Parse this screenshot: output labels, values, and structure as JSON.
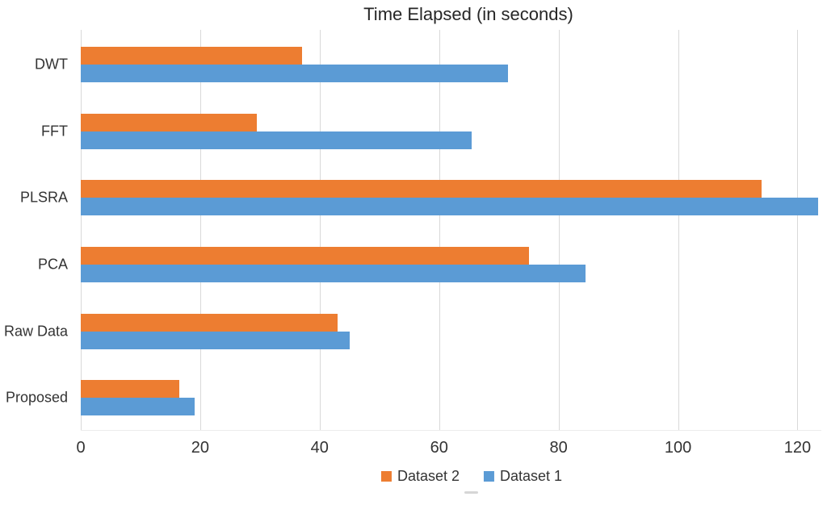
{
  "chart_data": {
    "type": "bar",
    "orientation": "horizontal",
    "title": "Time Elapsed (in seconds)",
    "value_unit": "seconds",
    "categories": [
      "DWT",
      "FFT",
      "PLSRA",
      "PCA",
      "Raw Data",
      "Proposed"
    ],
    "series": [
      {
        "name": "Dataset 2",
        "color": "#ED7D31",
        "values": [
          37,
          29.5,
          114,
          75,
          43,
          16.5
        ]
      },
      {
        "name": "Dataset 1",
        "color": "#5B9BD5",
        "values": [
          71.5,
          65.5,
          123.5,
          84.5,
          45,
          19
        ]
      }
    ],
    "x_ticks": [
      0,
      20,
      40,
      60,
      80,
      100,
      120
    ],
    "xlim": [
      0,
      124
    ],
    "grid": true,
    "gridline_color": "#D9D9D9",
    "text_color": "#333333",
    "legend_position": "bottom",
    "legend_order": [
      "Dataset 2",
      "Dataset 1"
    ]
  }
}
